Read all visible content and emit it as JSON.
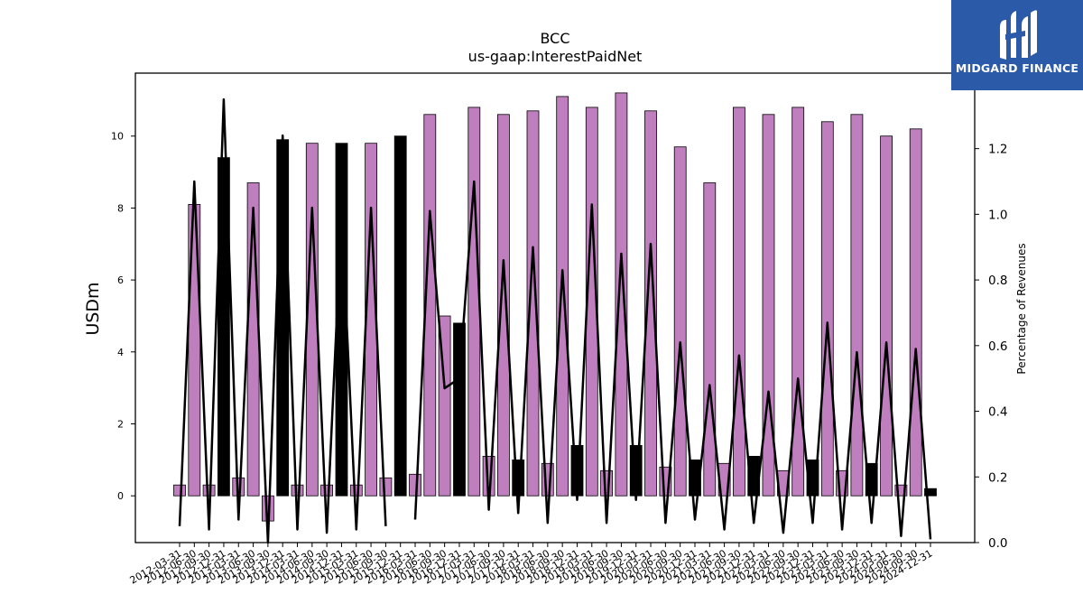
{
  "logo": {
    "text": "MIDGARD FINANCE",
    "icon": "mf-monogram-icon",
    "bg_color": "#2a5aa8"
  },
  "chart_data": {
    "type": "bar",
    "title": "BCC",
    "subtitle": "us-gaap:InterestPaidNet",
    "ylabel": "USDm",
    "y2label": "Percentage of Revenues",
    "ylim": [
      -1.3,
      11.75
    ],
    "y2lim": [
      0.0,
      1.43
    ],
    "yticks": [
      0,
      2,
      4,
      6,
      8,
      10
    ],
    "y2ticks": [
      0.0,
      0.2,
      0.4,
      0.6,
      0.8,
      1.0,
      1.2
    ],
    "categories": [
      "2012-03-31",
      "2012-06-30",
      "2012-09-30",
      "2012-12-31",
      "2013-03-31",
      "2013-06-30",
      "2013-09-30",
      "2013-12-31",
      "2014-03-31",
      "2014-06-30",
      "2014-09-30",
      "2014-12-31",
      "2015-03-31",
      "2015-06-30",
      "2015-09-30",
      "2015-12-31",
      "2016-03-31",
      "2016-06-30",
      "2016-09-30",
      "2016-12-31",
      "2017-03-31",
      "2017-06-30",
      "2017-09-30",
      "2017-12-31",
      "2018-03-31",
      "2018-06-30",
      "2018-09-30",
      "2018-12-31",
      "2019-03-31",
      "2019-06-30",
      "2019-09-30",
      "2019-12-31",
      "2020-03-31",
      "2020-06-30",
      "2020-09-30",
      "2020-12-31",
      "2021-03-31",
      "2021-06-30",
      "2021-09-30",
      "2021-12-31",
      "2022-03-31",
      "2022-06-30",
      "2022-09-30",
      "2022-12-31",
      "2023-03-31",
      "2023-06-30",
      "2023-09-30",
      "2023-12-31",
      "2024-03-31",
      "2024-06-30",
      "2024-09-30",
      "2024-12-31"
    ],
    "series": [
      {
        "type": "bar",
        "values": [
          0.3,
          8.1,
          0.3,
          9.4,
          0.5,
          8.7,
          -0.7,
          9.9,
          0.3,
          9.8,
          0.3,
          9.8,
          0.3,
          9.8,
          0.5,
          10.0,
          0.6,
          10.6,
          5.0,
          4.8,
          10.8,
          1.1,
          10.6,
          1.0,
          10.7,
          0.9,
          11.1,
          1.4,
          10.8,
          0.7,
          11.2,
          1.4,
          10.7,
          0.8,
          9.7,
          1.0,
          8.7,
          0.9,
          10.8,
          1.1,
          10.6,
          0.7,
          10.8,
          1.0,
          10.4,
          0.7,
          10.6,
          0.9,
          10.0,
          0.3,
          10.2,
          0.2
        ]
      },
      {
        "type": "line",
        "axis": "right",
        "values": [
          0.05,
          1.1,
          0.04,
          1.35,
          0.07,
          1.02,
          0.0,
          1.24,
          0.04,
          1.02,
          0.03,
          1.0,
          0.04,
          1.02,
          0.05,
          null,
          0.07,
          1.01,
          0.47,
          0.5,
          1.1,
          0.1,
          0.86,
          0.09,
          0.9,
          0.06,
          0.83,
          0.13,
          1.03,
          0.06,
          0.88,
          0.13,
          0.91,
          0.06,
          0.61,
          0.07,
          0.48,
          0.04,
          0.57,
          0.06,
          0.46,
          0.03,
          0.5,
          0.06,
          0.67,
          0.04,
          0.58,
          0.06,
          0.61,
          0.02,
          0.59,
          0.01
        ]
      }
    ],
    "bar_colors": {
      "purple": "#bf7fbf",
      "black": "#000000"
    },
    "bar_black_flags": [
      0,
      0,
      0,
      1,
      0,
      0,
      0,
      1,
      0,
      0,
      0,
      1,
      0,
      0,
      0,
      1,
      0,
      0,
      0,
      1,
      0,
      0,
      0,
      1,
      0,
      0,
      0,
      1,
      0,
      0,
      0,
      1,
      0,
      0,
      0,
      1,
      0,
      0,
      0,
      1,
      0,
      0,
      0,
      1,
      0,
      0,
      0,
      1,
      0,
      0,
      0,
      1
    ],
    "line_color": "#000000",
    "grid": false
  }
}
